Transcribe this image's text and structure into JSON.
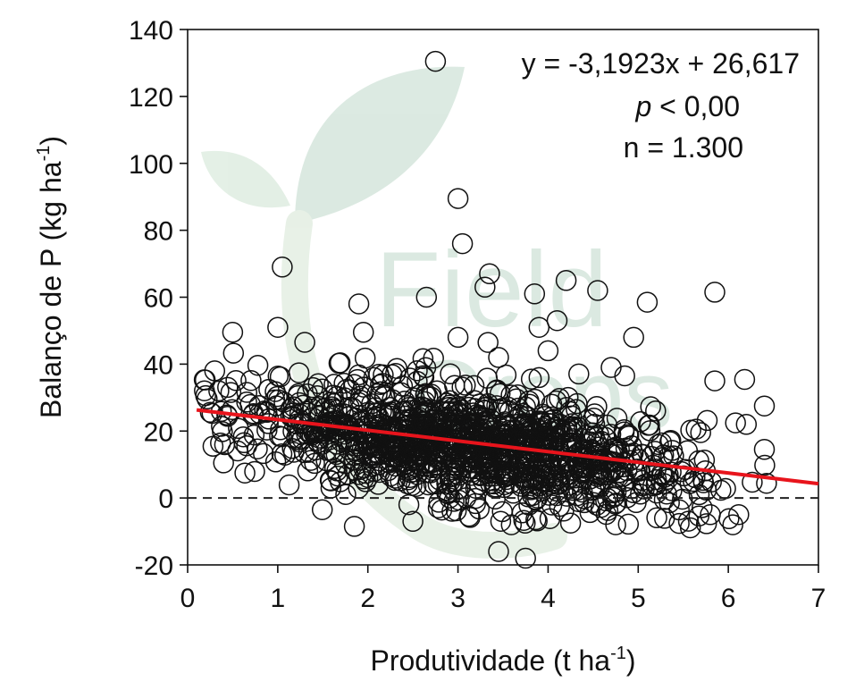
{
  "chart_data": {
    "type": "scatter",
    "xlabel": "Produtividade (t ha",
    "xlabel_sup": "-1",
    "xlabel_tail": ")",
    "ylabel": "Balanço de P (kg ha",
    "ylabel_sup": "-1",
    "ylabel_tail": ")",
    "xlim": [
      0,
      7
    ],
    "ylim": [
      -20,
      140
    ],
    "xticks": [
      0,
      1,
      2,
      3,
      4,
      5,
      6,
      7
    ],
    "yticks": [
      -20,
      0,
      20,
      40,
      60,
      80,
      100,
      120,
      140
    ],
    "grid": false,
    "legend": "none",
    "annotation": {
      "equation": "y = -3,1923x + 26,617",
      "p_symbol": "p",
      "p_rest": " < 0,00",
      "n_text": "n = 1.300"
    },
    "regression": {
      "slope": -3.1923,
      "intercept": 26.617,
      "x_range": [
        0.1,
        7.0
      ],
      "color": "#e8141c"
    },
    "reference_line": {
      "y": 0,
      "style": "dashed",
      "color": "#222222"
    },
    "marker": {
      "shape": "open-circle",
      "color": "#111111"
    },
    "n_points": 1300,
    "outliers": [
      [
        2.75,
        130.5
      ],
      [
        3.0,
        89.5
      ],
      [
        3.05,
        76
      ],
      [
        1.05,
        69
      ],
      [
        3.35,
        67
      ],
      [
        3.3,
        63
      ],
      [
        2.65,
        60
      ],
      [
        3.85,
        61
      ],
      [
        4.2,
        65
      ],
      [
        4.55,
        62
      ],
      [
        5.1,
        58.5
      ],
      [
        5.85,
        61.5
      ],
      [
        1.9,
        58
      ],
      [
        4.1,
        53
      ],
      [
        3.9,
        51
      ],
      [
        4.95,
        48
      ],
      [
        3.0,
        48
      ],
      [
        0.5,
        49.5
      ],
      [
        1.95,
        49.5
      ],
      [
        1.0,
        51
      ],
      [
        1.3,
        46.5
      ],
      [
        3.45,
        42
      ],
      [
        4.0,
        44
      ],
      [
        5.85,
        35
      ],
      [
        6.4,
        27.5
      ],
      [
        6.4,
        14.5
      ],
      [
        6.2,
        22
      ],
      [
        6.05,
        -8
      ],
      [
        3.45,
        -16
      ],
      [
        3.75,
        -18
      ],
      [
        1.85,
        -8.5
      ],
      [
        2.5,
        -7
      ],
      [
        4.25,
        -7.5
      ],
      [
        4.75,
        -8
      ],
      [
        5.8,
        -5
      ],
      [
        4.85,
        36.5
      ],
      [
        4.7,
        39
      ],
      [
        3.9,
        36
      ],
      [
        0.3,
        38
      ]
    ]
  },
  "watermark": {
    "word1": "Field",
    "word2": "Crops",
    "color": "#3d8a5c"
  }
}
